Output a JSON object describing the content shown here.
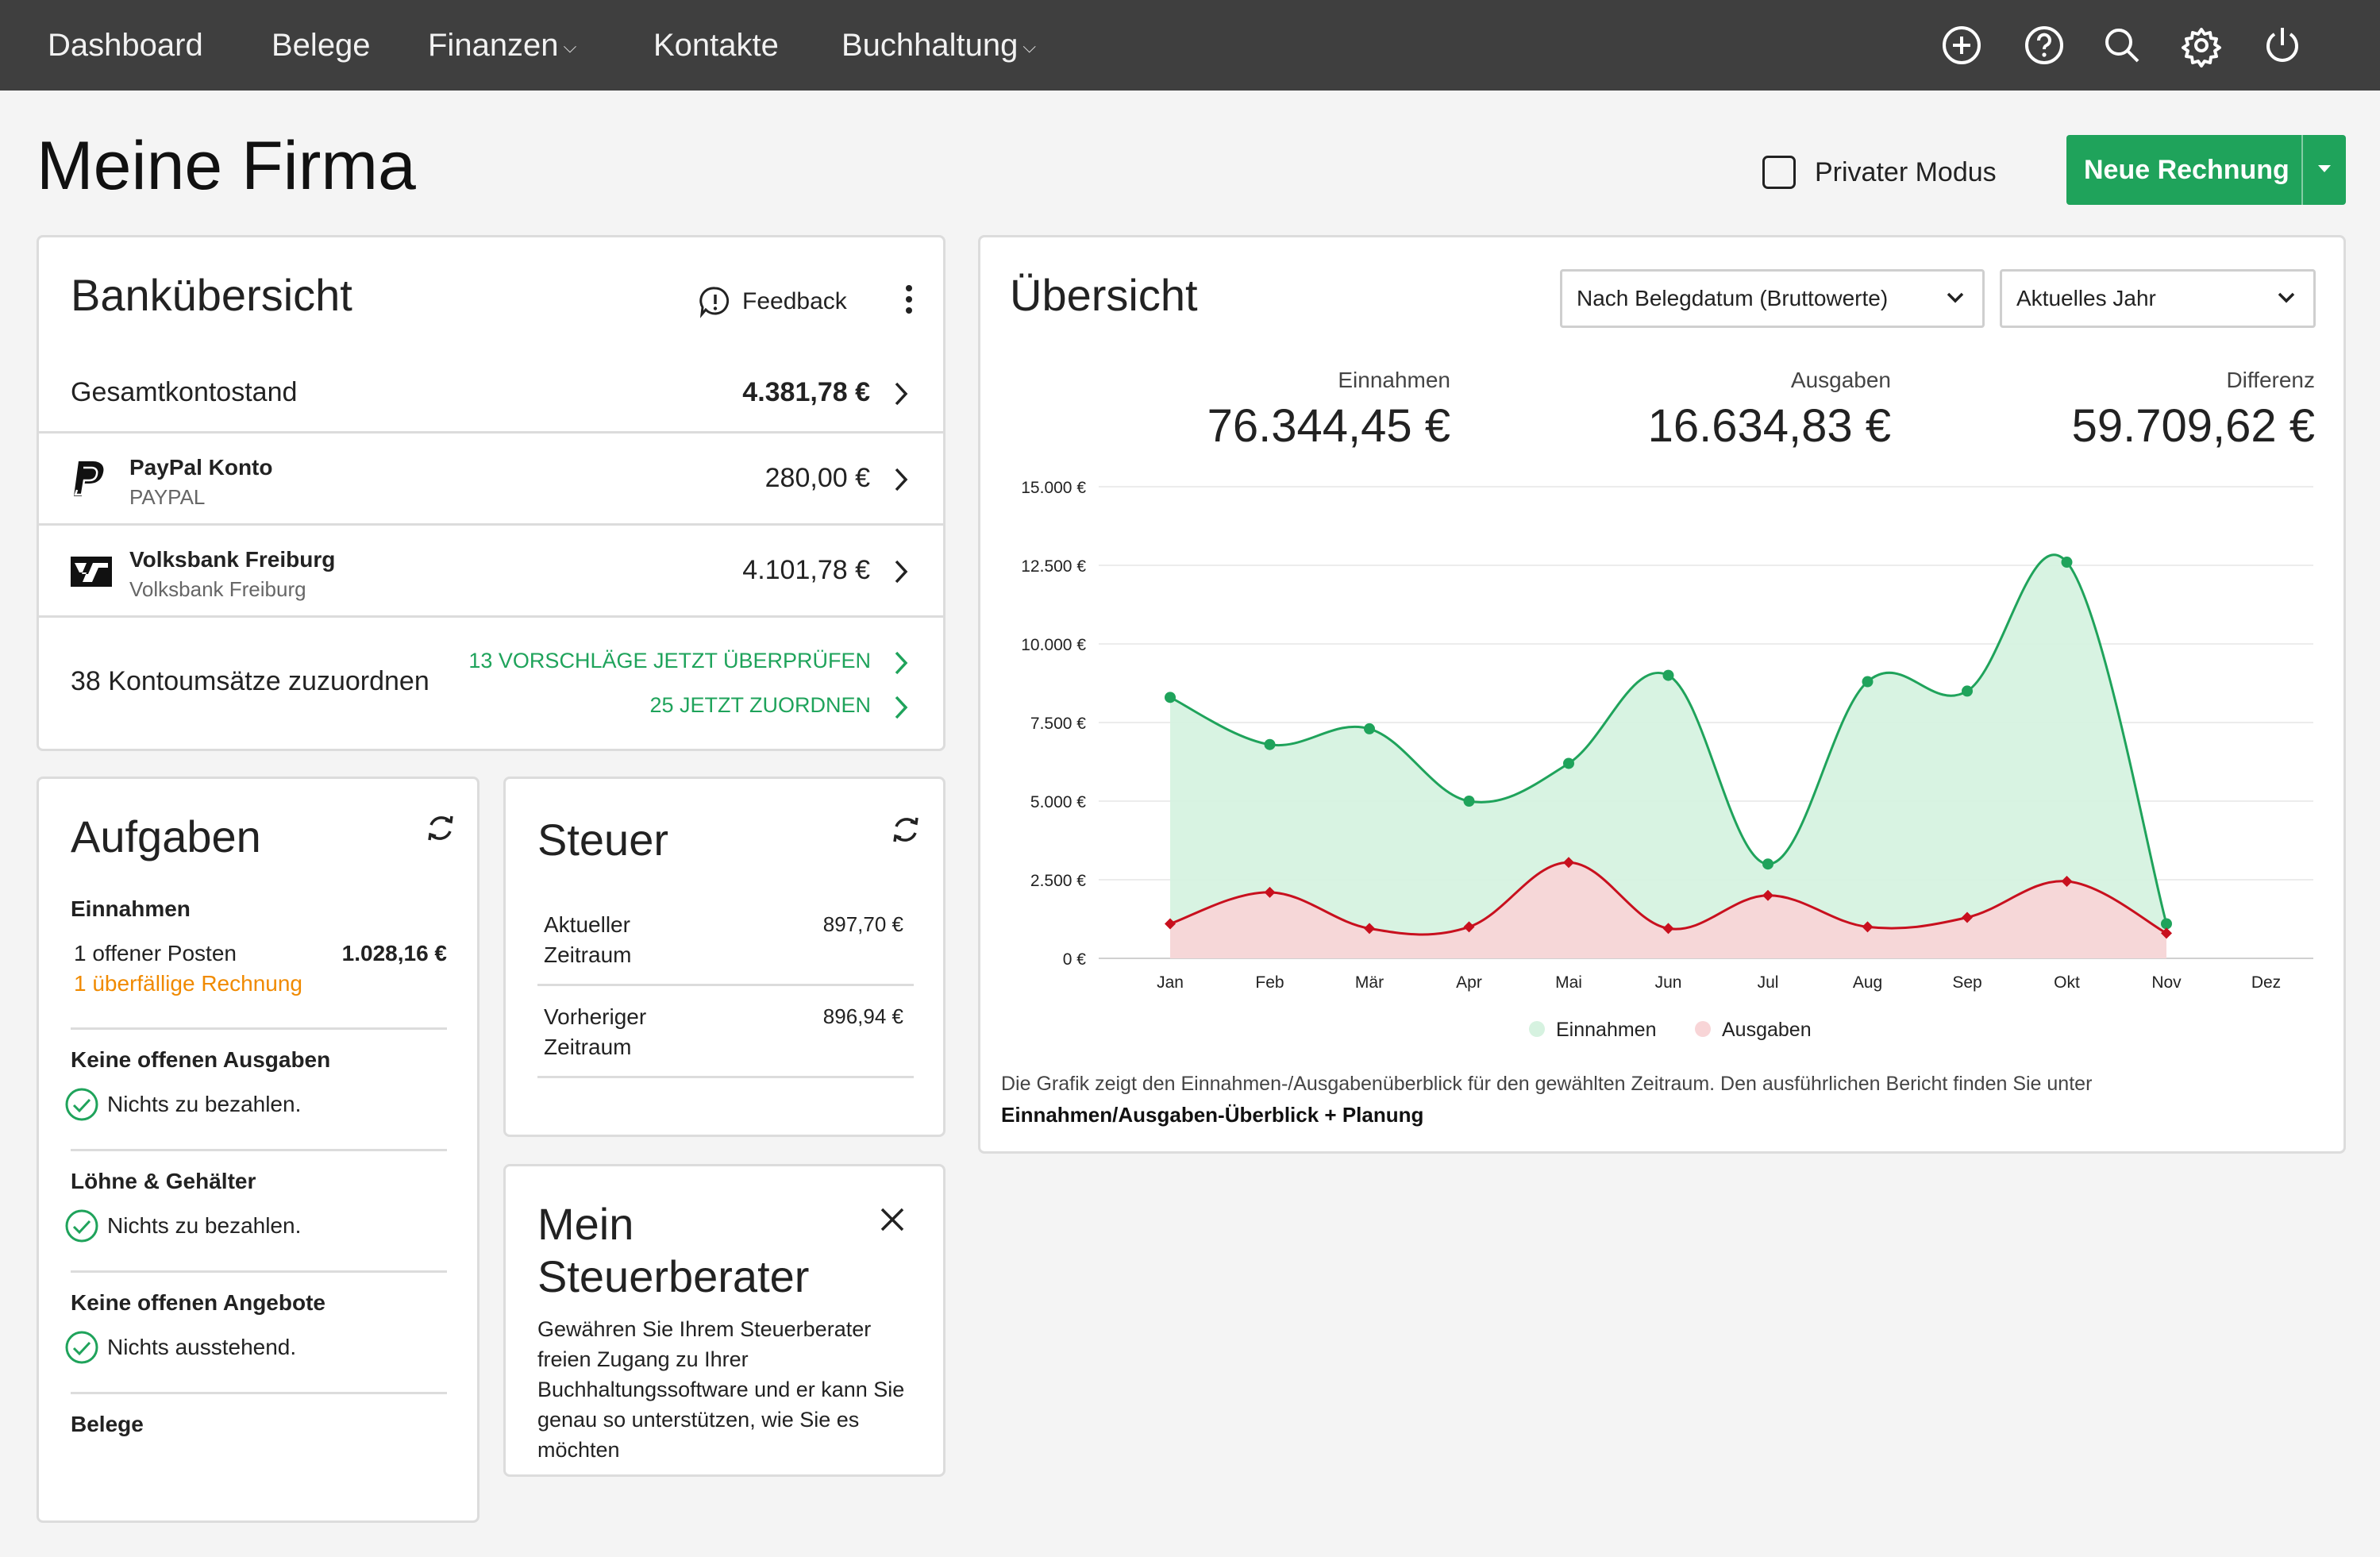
{
  "nav": {
    "items": [
      {
        "label": "Dashboard"
      },
      {
        "label": "Belege"
      },
      {
        "label": "Finanzen",
        "has_dropdown": true
      },
      {
        "label": "Kontakte"
      },
      {
        "label": "Buchhaltung",
        "has_dropdown": true
      }
    ],
    "icons": [
      "plus-circle-icon",
      "help-icon",
      "search-icon",
      "gear-icon",
      "power-icon"
    ]
  },
  "page": {
    "title": "Meine Firma",
    "private_mode_label": "Privater Modus",
    "private_mode_checked": false,
    "new_invoice_label": "Neue Rechnung"
  },
  "bank": {
    "title": "Bankübersicht",
    "feedback_label": "Feedback",
    "total_label": "Gesamtkontostand",
    "total_value": "4.381,78 €",
    "accounts": [
      {
        "name": "PayPal Konto",
        "sub": "PAYPAL",
        "balance": "280,00 €",
        "icon": "paypal-icon"
      },
      {
        "name": "Volksbank Freiburg",
        "sub": "Volksbank Freiburg",
        "balance": "4.101,78 €",
        "icon": "volksbank-icon"
      }
    ],
    "unassigned_label": "38 Kontoumsätze zuzuordnen",
    "suggestions_link": "13 VORSCHLÄGE JETZT ÜBERPRÜFEN",
    "assign_link": "25 JETZT ZUORDNEN"
  },
  "tasks": {
    "title": "Aufgaben",
    "income_heading": "Einnahmen",
    "open_items_label": "1 offener Posten",
    "open_items_value": "1.028,16 €",
    "overdue_label": "1 überfällige Rechnung",
    "sections": [
      {
        "heading": "Keine offenen Ausgaben",
        "status": "Nichts zu bezahlen."
      },
      {
        "heading": "Löhne & Gehälter",
        "status": "Nichts zu bezahlen."
      },
      {
        "heading": "Keine offenen Angebote",
        "status": "Nichts ausstehend."
      }
    ],
    "receipts_heading": "Belege"
  },
  "tax": {
    "title": "Steuer",
    "rows": [
      {
        "label_line1": "Aktueller",
        "label_line2": "Zeitraum",
        "value": "897,70 €"
      },
      {
        "label_line1": "Vorheriger",
        "label_line2": "Zeitraum",
        "value": "896,94 €"
      }
    ]
  },
  "advisor": {
    "title_line1": "Mein",
    "title_line2": "Steuerberater",
    "text_lines": [
      "Gewähren Sie Ihrem Steuerberater",
      "freien Zugang zu Ihrer",
      "Buchhaltungssoftware und er kann Sie",
      "genau so unterstützen, wie Sie es",
      "möchten"
    ]
  },
  "overview": {
    "title": "Übersicht",
    "filter_mode": "Nach Belegdatum (Bruttowerte)",
    "filter_period": "Aktuelles Jahr",
    "kpis": [
      {
        "label": "Einnahmen",
        "value": "76.344,45 €"
      },
      {
        "label": "Ausgaben",
        "value": "16.634,83 €"
      },
      {
        "label": "Differenz",
        "value": "59.709,62 €"
      }
    ],
    "footnote": "Die Grafik zeigt den Einnahmen-/Ausgabenüberblick für den gewählten Zeitraum. Den ausführlichen Bericht finden Sie unter",
    "footnote_link": "Einnahmen/Ausgaben-Überblick + Planung"
  },
  "chart_data": {
    "type": "area",
    "categories": [
      "Jan",
      "Feb",
      "Mär",
      "Apr",
      "Mai",
      "Jun",
      "Jul",
      "Aug",
      "Sep",
      "Okt",
      "Nov",
      "Dez"
    ],
    "series": [
      {
        "name": "Einnahmen",
        "color": "#1fa35b",
        "fill": "#d6f2e0",
        "values": [
          8300,
          6800,
          7300,
          5000,
          6200,
          9000,
          3000,
          8800,
          8500,
          12600,
          1100,
          null
        ]
      },
      {
        "name": "Ausgaben",
        "color": "#c8101e",
        "fill": "#f8d5d7",
        "values": [
          1100,
          2100,
          950,
          1000,
          3050,
          950,
          2000,
          1000,
          1300,
          2450,
          800,
          null
        ]
      }
    ],
    "y_ticks": [
      "15.000 €",
      "12.500 €",
      "10.000 €",
      "7.500 €",
      "5.000 €",
      "2.500 €",
      "0 €"
    ],
    "ylim": [
      0,
      15000
    ],
    "legend": "bottom-center",
    "grid": true
  }
}
